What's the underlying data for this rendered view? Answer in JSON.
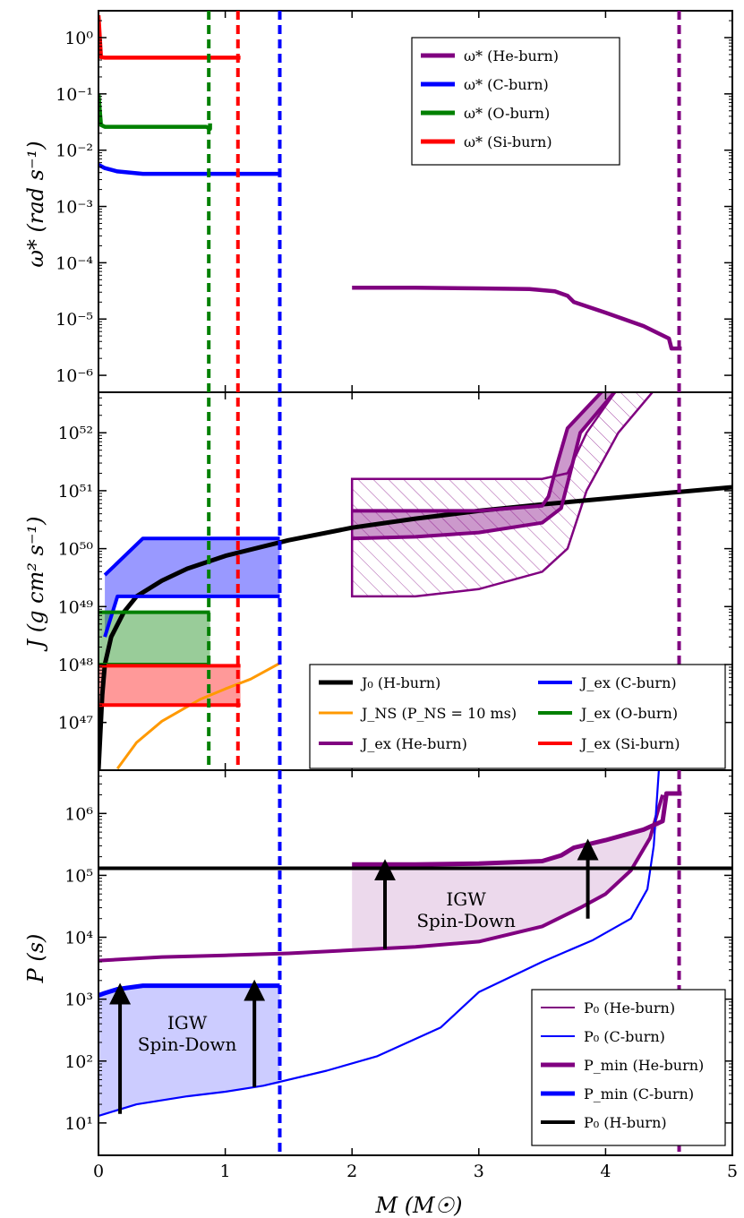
{
  "colors": {
    "he": "#800080",
    "c": "#0000ff",
    "o": "#008000",
    "si": "#ff0000",
    "h": "#000000",
    "ns": "#ff9900"
  },
  "chart_data": [
    {
      "type": "line",
      "panel": "top",
      "ylabel": "ω* (rad s⁻¹)",
      "yscale": "log",
      "ylim": [
        5e-07,
        3
      ],
      "xlim": [
        0,
        5
      ],
      "ytick_labels": [
        "10⁻⁶",
        "10⁻⁵",
        "10⁻⁴",
        "10⁻³",
        "10⁻²",
        "10⁻¹",
        "10⁰"
      ],
      "ytick_values": [
        1e-06,
        1e-05,
        0.0001,
        0.001,
        0.01,
        0.1,
        1
      ],
      "legend_position": "upper right",
      "legend": [
        "ω* (He-burn)",
        "ω* (C-burn)",
        "ω* (O-burn)",
        "ω* (Si-burn)"
      ],
      "series": [
        {
          "name": "ω* (He-burn)",
          "color": "he",
          "x": [
            2.0,
            2.5,
            3.0,
            3.4,
            3.6,
            3.7,
            3.75,
            4.0,
            4.3,
            4.5,
            4.52,
            4.6
          ],
          "y": [
            3.6e-05,
            3.6e-05,
            3.5e-05,
            3.4e-05,
            3.1e-05,
            2.6e-05,
            2e-05,
            1.3e-05,
            7.5e-06,
            4.5e-06,
            3e-06,
            3e-06
          ]
        },
        {
          "name": "ω* (C-burn)",
          "color": "c",
          "x": [
            0.0,
            0.05,
            0.15,
            0.35,
            1.0,
            1.43
          ],
          "y": [
            0.0055,
            0.0048,
            0.0042,
            0.0038,
            0.0038,
            0.0038
          ]
        },
        {
          "name": "ω* (O-burn)",
          "color": "o",
          "x": [
            0.0,
            0.02,
            0.05,
            0.85,
            0.88,
            0.88
          ],
          "y": [
            0.1,
            0.028,
            0.026,
            0.026,
            0.024,
            0.03
          ]
        },
        {
          "name": "ω* (Si-burn)",
          "color": "si",
          "x": [
            0.0,
            0.02,
            0.05,
            1.12
          ],
          "y": [
            2.5,
            0.45,
            0.44,
            0.44
          ]
        }
      ],
      "vlines": [
        {
          "x": 0.87,
          "color": "o"
        },
        {
          "x": 1.1,
          "color": "si"
        },
        {
          "x": 1.43,
          "color": "c"
        },
        {
          "x": 4.58,
          "color": "he"
        }
      ]
    },
    {
      "type": "line",
      "panel": "middle",
      "ylabel": "J (g cm² s⁻¹)",
      "yscale": "log",
      "ylim": [
        1.5e+46,
        5e+52
      ],
      "xlim": [
        0,
        5
      ],
      "ytick_labels": [
        "10⁴⁷",
        "10⁴⁸",
        "10⁴⁹",
        "10⁵⁰",
        "10⁵¹",
        "10⁵²"
      ],
      "ytick_values": [
        1e+47,
        1e+48,
        1e+49,
        1e+50,
        1e+51,
        1e+52
      ],
      "legend_position": "lower right",
      "legend": [
        "J₀ (H-burn)",
        "J_NS (P_NS = 10 ms)",
        "J_ex (He-burn)",
        "J_ex (C-burn)",
        "J_ex (O-burn)",
        "J_ex (Si-burn)"
      ],
      "series": [
        {
          "name": "J₀ (H-burn)",
          "color": "h",
          "x": [
            0.0,
            0.03,
            0.05,
            0.1,
            0.2,
            0.3,
            0.5,
            0.7,
            1.0,
            1.5,
            2.0,
            2.5,
            3.0,
            3.5,
            4.0,
            4.5,
            5.0
          ],
          "y": [
            1.5e+46,
            3e+47,
            1e+48,
            3e+48,
            8e+48,
            1.5e+49,
            2.8e+49,
            4.5e+49,
            7.5e+49,
            1.4e+50,
            2.3e+50,
            3.3e+50,
            4.5e+50,
            5.8e+50,
            7.3e+50,
            9.2e+50,
            1.15e+51
          ]
        },
        {
          "name": "J_NS (P_NS = 10 ms)",
          "color": "ns",
          "x": [
            0.15,
            0.3,
            0.5,
            0.8,
            1.0,
            1.2,
            1.43
          ],
          "y": [
            1.6e+46,
            4.5e+46,
            1.05e+47,
            2.5e+47,
            3.8e+47,
            5.6e+47,
            1.05e+48
          ]
        },
        {
          "name": "J_ex (He-burn) lower",
          "color": "he",
          "x": [
            2.0,
            2.5,
            3.0,
            3.5,
            3.65,
            3.72,
            3.8,
            4.1
          ],
          "y": [
            1.5e+50,
            1.6e+50,
            1.9e+50,
            2.8e+50,
            5e+50,
            2e+51,
            1e+52,
            6e+52
          ]
        },
        {
          "name": "J_ex (He-burn) upper",
          "color": "he",
          "x": [
            2.0,
            2.5,
            3.0,
            3.5,
            3.55,
            3.62,
            3.7,
            4.0
          ],
          "y": [
            4.5e+50,
            4.5e+50,
            4.5e+50,
            5.5e+50,
            8e+50,
            3e+51,
            1.2e+52,
            6e+52
          ]
        },
        {
          "name": "J_ex (C-burn) lower",
          "color": "c",
          "x": [
            0.05,
            0.15,
            1.43
          ],
          "y": [
            3e+48,
            1.5e+49,
            1.5e+49
          ]
        },
        {
          "name": "J_ex (C-burn) upper",
          "color": "c",
          "x": [
            0.05,
            0.35,
            1.43
          ],
          "y": [
            3.5e+49,
            1.5e+50,
            1.5e+50
          ]
        },
        {
          "name": "J_ex (O-burn) lower",
          "color": "o",
          "x": [
            0.0,
            0.88
          ],
          "y": [
            1e+48,
            1e+48
          ]
        },
        {
          "name": "J_ex (O-burn) upper",
          "color": "o",
          "x": [
            0.0,
            0.88
          ],
          "y": [
            8e+48,
            8e+48
          ]
        },
        {
          "name": "J_ex (Si-burn) lower",
          "color": "si",
          "x": [
            0.0,
            1.12
          ],
          "y": [
            2e+47,
            2e+47
          ]
        },
        {
          "name": "J_ex (Si-burn) upper",
          "color": "si",
          "x": [
            0.0,
            1.12
          ],
          "y": [
            9.5e+47,
            9.5e+47
          ]
        }
      ],
      "hatched_region": {
        "color": "he",
        "x_range": [
          2.0,
          4.4
        ],
        "lower": [
          1.5e+49,
          1.5e+49,
          2e+49,
          4e+49,
          1e+50,
          1e+51,
          1e+52,
          6e+52
        ],
        "upper": [
          1.6e+51,
          1.6e+51,
          1.6e+51,
          1.6e+51,
          2e+51,
          1e+52,
          6e+52,
          6e+52
        ]
      }
    },
    {
      "type": "line",
      "panel": "bottom",
      "ylabel": "P (s)",
      "xlabel": "M (M☉)",
      "yscale": "log",
      "ylim": [
        3,
        5000000.0
      ],
      "xlim": [
        0,
        5
      ],
      "xtick_labels": [
        "0",
        "1",
        "2",
        "3",
        "4",
        "5"
      ],
      "xtick_values": [
        0,
        1,
        2,
        3,
        4,
        5
      ],
      "ytick_labels": [
        "10¹",
        "10²",
        "10³",
        "10⁴",
        "10⁵",
        "10⁶"
      ],
      "ytick_values": [
        10,
        100,
        1000,
        10000,
        100000,
        1000000
      ],
      "legend_position": "lower right",
      "legend": [
        "P₀ (He-burn)",
        "P₀ (C-burn)",
        "P_min (He-burn)",
        "P_min (C-burn)",
        "P₀ (H-burn)"
      ],
      "series": [
        {
          "name": "P₀ (He-burn)",
          "color": "he",
          "x": [
            0.0,
            0.5,
            1.0,
            1.5,
            2.0,
            2.5,
            3.0,
            3.5,
            3.8,
            4.0,
            4.2,
            4.35,
            4.45
          ],
          "y": [
            4200.0,
            4800.0,
            5100.0,
            5500.0,
            6200.0,
            7000.0,
            8500.0,
            15000.0,
            30000.0,
            50000.0,
            120000.0,
            400000.0,
            2000000.0
          ]
        },
        {
          "name": "P₀ (C-burn)",
          "color": "c",
          "x": [
            0.0,
            0.05,
            0.3,
            0.7,
            1.0,
            1.3,
            1.8,
            2.2,
            2.7,
            3.0,
            3.5,
            3.9,
            4.2,
            4.33,
            4.38,
            4.42
          ],
          "y": [
            13,
            14,
            20,
            27,
            32,
            40,
            70,
            120,
            350,
            1300,
            4000,
            9000,
            20000.0,
            60000.0,
            300000.0,
            5000000.0
          ]
        },
        {
          "name": "P_min (He-burn)",
          "color": "he",
          "x": [
            2.0,
            2.5,
            3.0,
            3.5,
            3.65,
            3.75,
            4.0,
            4.3,
            4.45,
            4.48,
            4.6
          ],
          "y": [
            150000.0,
            150000.0,
            155000.0,
            170000.0,
            210000.0,
            280000.0,
            370000.0,
            550000.0,
            750000.0,
            2100000.0,
            2100000.0
          ]
        },
        {
          "name": "P_min (C-burn)",
          "color": "c",
          "x": [
            0.0,
            0.05,
            0.15,
            0.35,
            1.0,
            1.43
          ],
          "y": [
            1150,
            1250,
            1450,
            1650,
            1650,
            1650
          ]
        },
        {
          "name": "P₀ (H-burn)",
          "color": "h",
          "x": [
            0.0,
            5.0
          ],
          "y": [
            130000.0,
            130000.0
          ]
        }
      ],
      "arrows": [
        {
          "x": 0.17,
          "from": 14,
          "to": 1500,
          "color": "h"
        },
        {
          "x": 1.23,
          "from": 38,
          "to": 1700,
          "color": "h"
        },
        {
          "x": 2.26,
          "from": 6500,
          "to": 150000.0,
          "color": "h"
        },
        {
          "x": 3.86,
          "from": 20000.0,
          "to": 320000.0,
          "color": "h"
        }
      ],
      "vlines": [
        {
          "x": 1.43,
          "color": "c"
        },
        {
          "x": 4.58,
          "color": "he"
        }
      ],
      "annotations": [
        {
          "line1": "IGW",
          "line2": "Spin-Down",
          "x": 0.7,
          "y": 250
        },
        {
          "line1": "IGW",
          "line2": "Spin-Down",
          "x": 2.9,
          "y": 25000.0
        }
      ]
    }
  ]
}
